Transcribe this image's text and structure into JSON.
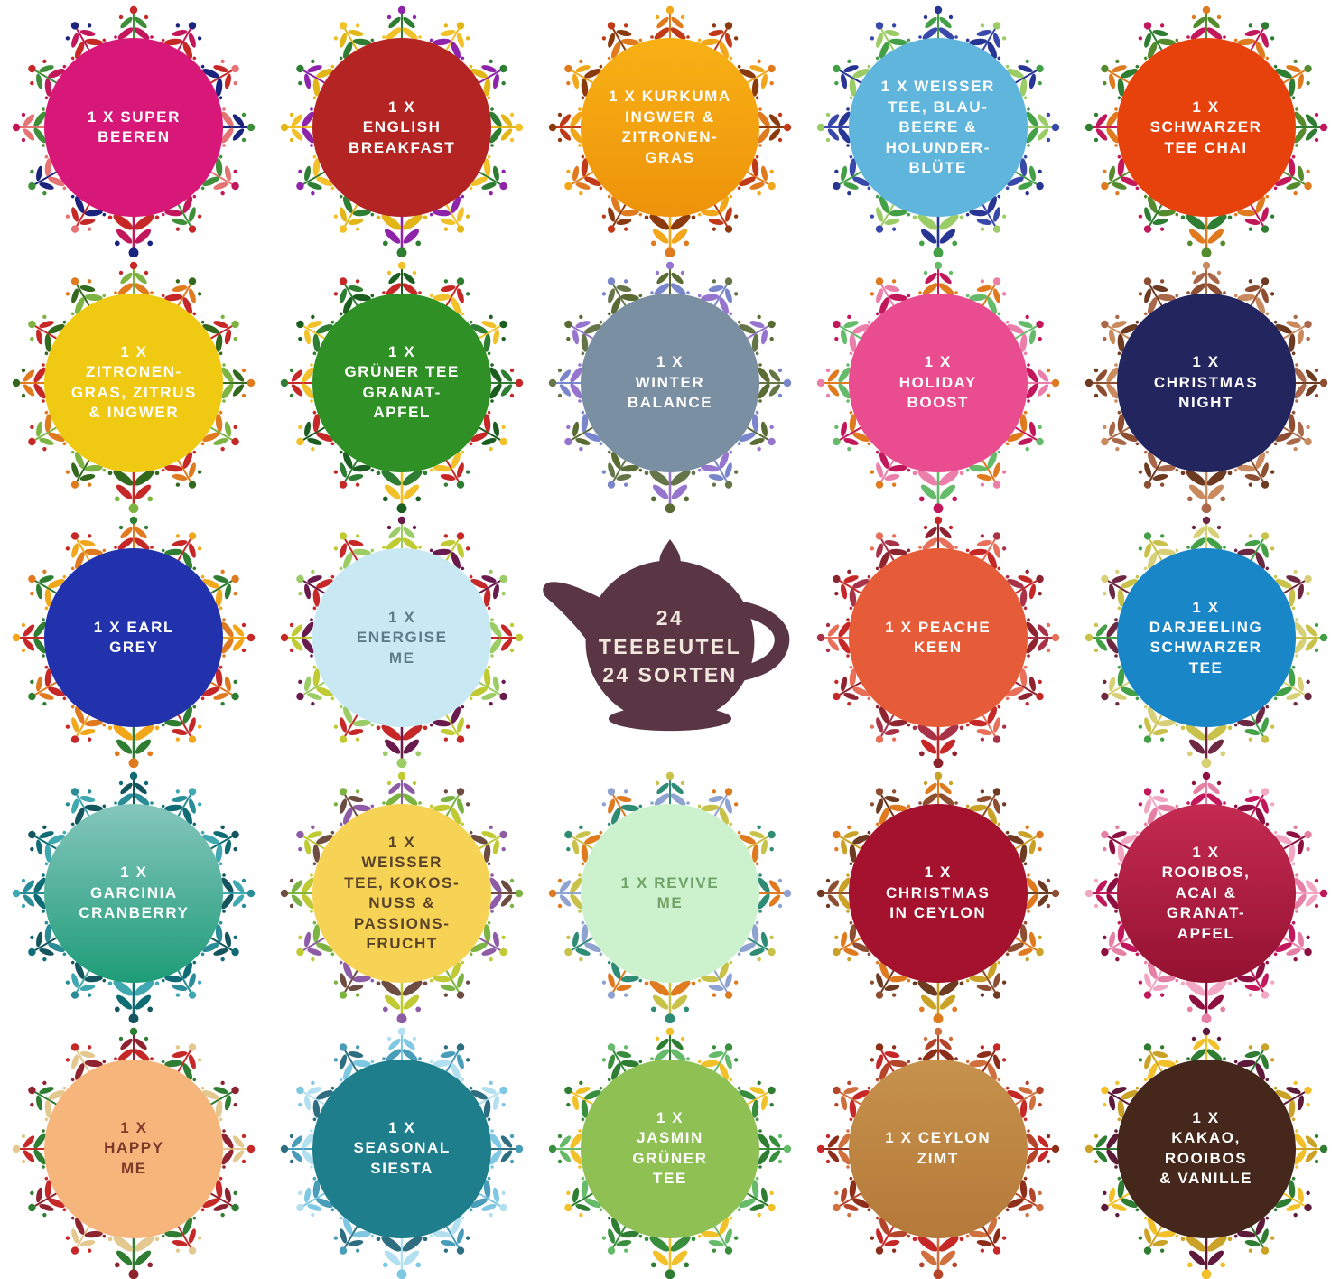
{
  "teapot": {
    "label": "24\nTEEBEUTEL\n24 SORTEN",
    "body_color": "#5A3644",
    "text_color": "#F2E7DC"
  },
  "tiles": [
    {
      "label": "1 X SUPER\nBEEREN",
      "circle_color": "#D81878",
      "text_color": "#FFFFFF",
      "wreath_colors": [
        "#3E8E3A",
        "#C2185B",
        "#C62828",
        "#1A237E",
        "#E57373"
      ]
    },
    {
      "label": "1 X\nENGLISH\nBREAKFAST",
      "circle_color": "#B32423",
      "text_color": "#FFFFFF",
      "wreath_colors": [
        "#2E7D32",
        "#F2C029",
        "#8E24AA",
        "#E3B617"
      ]
    },
    {
      "label": "1 X KURKUMA\nINGWER &\nZITRONEN-\nGRAS",
      "circle_color": "#F8B115",
      "circle_color2": "#EE930B",
      "text_color": "#FFFFFF",
      "wreath_colors": [
        "#E07A1F",
        "#C03A18",
        "#F2A71B",
        "#8B3A0E"
      ]
    },
    {
      "label": "1 X WEISSER\nTEE, BLAU-\nBEERE &\nHOLUNDER-\nBLÜTE",
      "circle_color": "#5FB5DC",
      "text_color": "#FFFFFF",
      "wreath_colors": [
        "#43A047",
        "#3949AB",
        "#283593",
        "#9CCC65"
      ]
    },
    {
      "label": "1 X\nSCHWARZER\nTEE CHAI",
      "circle_color": "#E8420C",
      "text_color": "#FFFFFF",
      "wreath_colors": [
        "#558B2F",
        "#C2185B",
        "#E07A1F",
        "#2E7D32"
      ]
    },
    {
      "label": "1 X\nZITRONEN-\nGRAS, ZITRUS\n& INGWER",
      "circle_color": "#EFC912",
      "text_color": "#FFFFFF",
      "wreath_colors": [
        "#7CB342",
        "#E07A1F",
        "#C62828",
        "#33691E"
      ]
    },
    {
      "label": "1 X\nGRÜNER TEE\nGRANAT-\nAPFEL",
      "circle_color": "#2F9025",
      "text_color": "#FFFFFF",
      "wreath_colors": [
        "#1B5E20",
        "#C62828",
        "#F2C029",
        "#2E7D32"
      ]
    },
    {
      "label": "1 X\nWINTER\nBALANCE",
      "circle_color": "#7B8FA3",
      "text_color": "#FFFFFF",
      "wreath_colors": [
        "#5A6B33",
        "#7986CB",
        "#9575CD",
        "#667547"
      ]
    },
    {
      "label": "1 X\nHOLIDAY\nBOOST",
      "circle_color": "#E94D90",
      "text_color": "#FFFFFF",
      "wreath_colors": [
        "#C2185B",
        "#E07A1F",
        "#66BB6A",
        "#EC7FA9"
      ]
    },
    {
      "label": "1 X\nCHRISTMAS\nNIGHT",
      "circle_color": "#23265E",
      "text_color": "#FFFFFF",
      "wreath_colors": [
        "#A9684A",
        "#8D4E31",
        "#C98A5E",
        "#6D3A22"
      ]
    },
    {
      "label": "1 X EARL\nGREY",
      "circle_color": "#2231AC",
      "text_color": "#FFFFFF",
      "wreath_colors": [
        "#E07A1F",
        "#C62828",
        "#2E7D32",
        "#F2A71B"
      ]
    },
    {
      "label": "1 X\nENERGISE\nME",
      "circle_color": "#C8E9F4",
      "text_color": "#5B7C8A",
      "wreath_colors": [
        "#9CCC65",
        "#C0CA33",
        "#6A1B4D",
        "#C62828"
      ]
    },
    {
      "label": "1 X PEACHE\nKEEN",
      "circle_color": "#E65B38",
      "text_color": "#FFFFFF",
      "wreath_colors": [
        "#8E2430",
        "#E8705A",
        "#C62828",
        "#A83248"
      ]
    },
    {
      "label": "1 X\nDARJEELING\nSCHWARZER\nTEE",
      "circle_color": "#1986C8",
      "text_color": "#FFFFFF",
      "wreath_colors": [
        "#D8D077",
        "#43A047",
        "#6D2842",
        "#C9C24A"
      ]
    },
    {
      "label": "1 X\nGARCINIA\nCRANBERRY",
      "circle_color": "#85C6BD",
      "circle_color2": "#1E9C77",
      "text_color": "#FFFFFF",
      "wreath_colors": [
        "#14555E",
        "#2A8C96",
        "#0F6C74",
        "#3FA8B0"
      ]
    },
    {
      "label": "1 X\nWEISSER\nTEE, KOKOS-\nNUSS &\nPASSIONS-\nFRUCHT",
      "circle_color": "#F6D355",
      "text_color": "#5A432B",
      "wreath_colors": [
        "#8E5BA6",
        "#7CB342",
        "#C0CA33",
        "#6D4C41"
      ]
    },
    {
      "label": "1 X REVIVE\nME",
      "circle_color": "#CBF2CC",
      "text_color": "#71A368",
      "wreath_colors": [
        "#2E8B74",
        "#8FA3D0",
        "#C9C24A",
        "#E07A1F"
      ]
    },
    {
      "label": "1 X\nCHRISTMAS\nIN CEYLON",
      "circle_color": "#A4122E",
      "text_color": "#FFFFFF",
      "wreath_colors": [
        "#E07A1F",
        "#8D4E31",
        "#C9A227",
        "#6D3A22"
      ]
    },
    {
      "label": "1 X\nROOIBOS,\nACAI &\nGRANAT-\nAPFEL",
      "circle_color": "#C42A52",
      "circle_color2": "#951231",
      "text_color": "#FFFFFF",
      "wreath_colors": [
        "#E57FA3",
        "#C2185B",
        "#8E1040",
        "#F2A7C3"
      ]
    },
    {
      "label": "1 X\nHAPPY\nME",
      "circle_color": "#F6B57B",
      "text_color": "#7D3A2B",
      "wreath_colors": [
        "#8E2430",
        "#C62828",
        "#2E7D32",
        "#E3C98F"
      ]
    },
    {
      "label": "1 X\nSEASONAL\nSIESTA",
      "circle_color": "#1F7E8C",
      "text_color": "#FFFFFF",
      "wreath_colors": [
        "#7EC8E3",
        "#4A9DB8",
        "#B3E0F0",
        "#2F6E80"
      ]
    },
    {
      "label": "1 X\nJASMIN\nGRÜNER\nTEE",
      "circle_color": "#8EC054",
      "text_color": "#FFFFFF",
      "wreath_colors": [
        "#2E7D32",
        "#66BB6A",
        "#F2C029",
        "#388E3C"
      ]
    },
    {
      "label": "1 X CEYLON\nZIMT",
      "circle_color": "#C6924C",
      "circle_color2": "#B5793A",
      "text_color": "#FFFFFF",
      "wreath_colors": [
        "#B5452A",
        "#8D2E1A",
        "#D0703E",
        "#C62828"
      ]
    },
    {
      "label": "1 X\nKAKAO,\nROOIBOS\n& VANILLE",
      "circle_color": "#45281B",
      "text_color": "#FFFFFF",
      "wreath_colors": [
        "#F2C029",
        "#2E7D32",
        "#5D1A3A",
        "#C9A227"
      ]
    }
  ]
}
